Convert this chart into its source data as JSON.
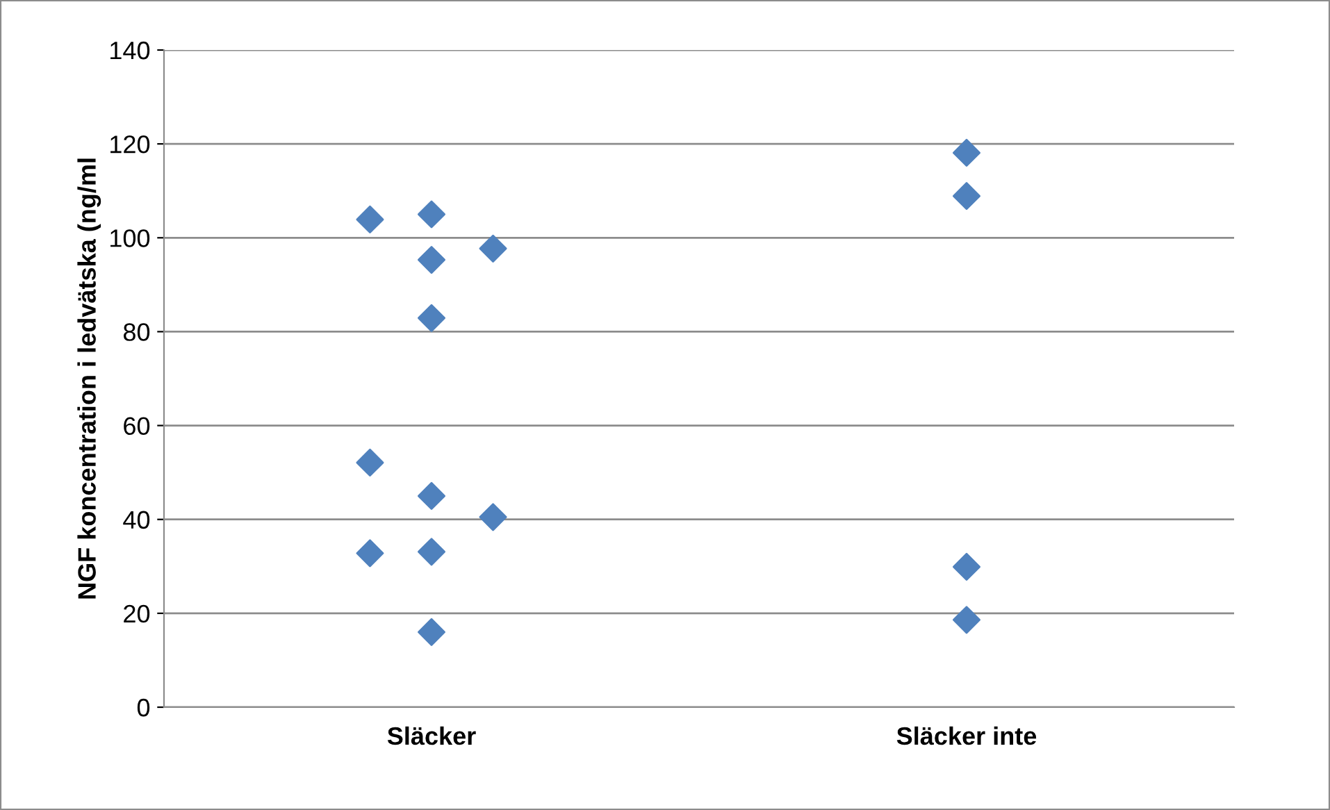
{
  "chart_data": {
    "type": "scatter",
    "ylabel": "NGF koncentration i ledvätska (ng/ml",
    "categories": [
      "Släcker",
      "Släcker inte"
    ],
    "series": [
      {
        "color": "#4f81bd",
        "x": [
          "Släcker",
          "Släcker",
          "Släcker"
        ],
        "values": [
          103.9,
          52.1,
          32.8
        ]
      },
      {
        "color": "#4f81bd",
        "x": [
          "Släcker",
          "Släcker",
          "Släcker",
          "Släcker",
          "Släcker",
          "Släcker",
          "Släcker inte",
          "Släcker inte",
          "Släcker inte",
          "Släcker inte"
        ],
        "values": [
          105,
          95.3,
          82.9,
          45,
          33.1,
          16,
          118.1,
          108.9,
          29.9,
          18.6
        ]
      },
      {
        "color": "#4f81bd",
        "x": [
          "Släcker",
          "Släcker"
        ],
        "values": [
          97.7,
          40.5
        ]
      }
    ],
    "ylim": [
      0,
      140
    ],
    "yticks": [
      0,
      20,
      40,
      60,
      80,
      100,
      120,
      140
    ],
    "grid": "y",
    "marker": "diamond",
    "legend": false
  }
}
